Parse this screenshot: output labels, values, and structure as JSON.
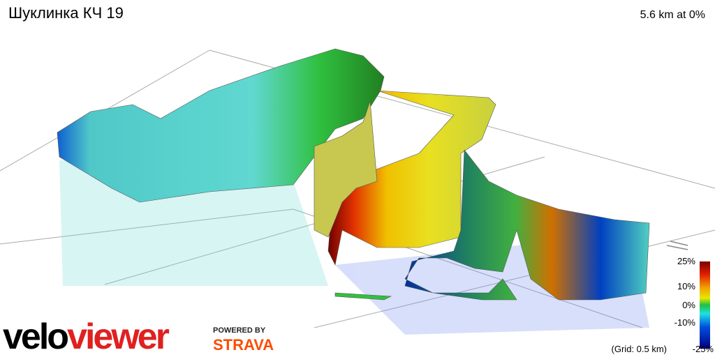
{
  "header": {
    "title": "Шуклинка КЧ 19",
    "summary": "5.6 km at 0%"
  },
  "legend": {
    "labels": [
      "25%",
      "10%",
      "0%",
      "-10%",
      "-25%"
    ]
  },
  "grid_note": "(Grid: 0.5 km)",
  "logos": {
    "velo": "velo",
    "viewer": "viewer",
    "powered_by": "POWERED BY",
    "strava": "STRAVA"
  }
}
